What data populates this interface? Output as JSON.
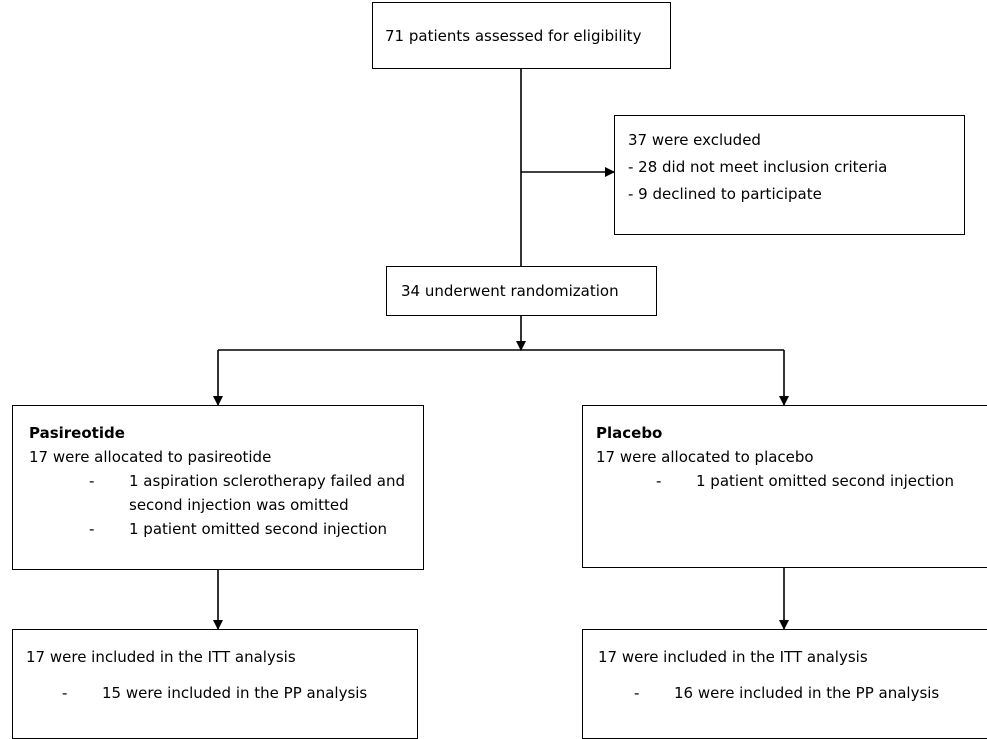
{
  "assessed": "71 patients assessed for eligibility",
  "excluded": {
    "title": "37 were excluded",
    "reason_criteria": "- 28 did not meet inclusion criteria",
    "reason_declined": "- 9 declined to participate"
  },
  "randomized": "34 underwent randomization",
  "pasireotide": {
    "heading": "Pasireotide",
    "allocated": "17 were allocated to pasireotide",
    "bullet_dash": "-",
    "note1_line1": "1 aspiration sclerotherapy failed and",
    "note1_line2": "second injection was omitted",
    "note2": "1 patient omitted second injection",
    "itt": "17 were included in the ITT analysis",
    "pp": "15 were included in the PP analysis"
  },
  "placebo": {
    "heading": "Placebo",
    "allocated": "17 were allocated to placebo",
    "bullet_dash": "-",
    "note1": "1 patient omitted second injection",
    "itt": "17 were included in the ITT analysis",
    "pp": "16 were included in the PP analysis"
  }
}
